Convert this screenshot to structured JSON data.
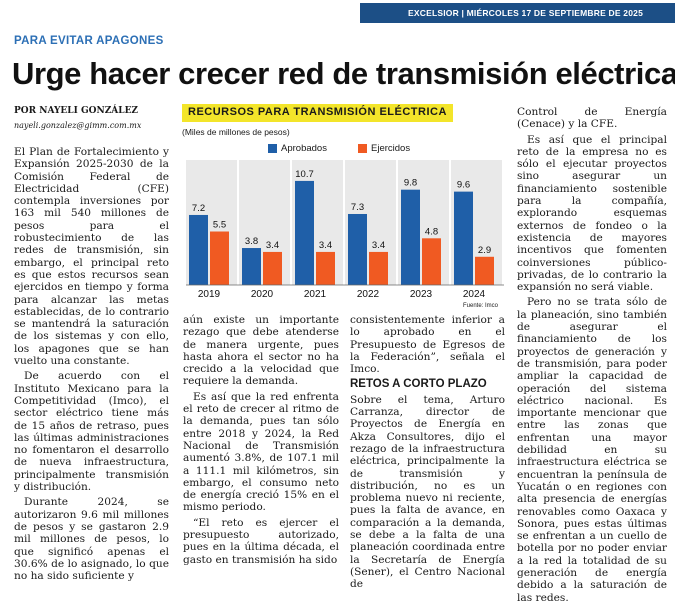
{
  "header": {
    "text": "EXCELSIOR | MIÉRCOLES 17 DE SEPTIEMBRE DE 2025"
  },
  "kicker": "PARA EVITAR APAGONES",
  "headline": "Urge hacer crecer red de transmisión eléctrica",
  "byline": "POR NAYELI GONZÁLEZ",
  "email": "nayeli.gonzalez@gimm.com.mx",
  "colors": {
    "aprobados": "#1f5fa8",
    "ejercidos": "#f05a22",
    "highlight": "#f3e52a",
    "header": "#1c4f86"
  },
  "col1": {
    "p1": "El Plan de Fortalecimiento y Expansión 2025-2030 de la Comisión Federal de Electricidad (CFE) contempla inversiones por 163 mil 540 millones de pesos para el robustecimiento de las redes de transmisión, sin embargo, el principal reto es que estos recursos sean ejercidos en tiempo y forma para alcanzar las metas establecidas, de lo contrario se mantendrá la saturación de los sistemas y con ello, los apagones que se han vuelto una constante.",
    "p2": "De acuerdo con el Instituto Mexicano para la Competitividad (Imco), el sector eléctrico tiene más de 15 años de retraso, pues las últimas administraciones no fomentaron el desarrollo de nueva infraestructura, principalmente transmisión y distribución.",
    "p3": "Durante 2024, se autorizaron 9.6 mil millones de pesos y se gastaron 2.9 mil millones de pesos, lo que significó apenas el 30.6% de lo asignado, lo que no ha sido suficiente y"
  },
  "col2": {
    "p1": "aún existe un importante rezago que debe atenderse de manera urgente, pues hasta ahora el sector no ha crecido a la velocidad que requiere la demanda.",
    "p2": "Es así que la red enfrenta el reto de crecer al ritmo de la demanda, pues tan sólo entre 2018 y 2024, la Red Nacional de Transmisión aumentó 3.8%, de 107.1 mil a 111.1 mil kilómetros, sin embargo, el consumo neto de energía creció 15% en el mismo periodo.",
    "p3": "“El reto es ejercer el presupuesto autorizado, pues en la última década, el gasto en transmisión ha sido"
  },
  "col3": {
    "p1": "consistentemente inferior a lo aprobado en el Presupuesto de Egresos de la Federación”, señala el Imco.",
    "subhead": "RETOS A CORTO PLAZO",
    "p2": "Sobre el tema, Arturo Carranza, director de Proyectos de Energía en Akza Consultores, dijo el rezago de la infraestructura eléctrica, principalmente la de transmisión y distribución, no es un problema nuevo ni reciente, pues la falta de avance, en comparación a la demanda, se debe a la falta de una planeación coordinada entre la Secretaría de Energía (Sener), el Centro Nacional de"
  },
  "col4": {
    "p1": "Control de Energía (Cenace) y la CFE.",
    "p2": "Es así que el principal reto de la empresa no es sólo el ejecutar proyectos sino asegurar un financiamiento sostenible para la compañía, explorando esquemas externos de fondeo o la existencia de mayores incentivos que fomenten coinversiones público-privadas, de lo contrario la expansión no será viable.",
    "p3": "Pero no se trata sólo de la planeación, sino también de asegurar el financiamiento de los proyectos de generación y de transmisión, para poder ampliar la capacidad de operación del sistema eléctrico nacional. Es importante mencionar que entre las zonas que enfrentan una mayor debilidad en su infraestructura eléctrica se encuentran la península de Yucatán o en regiones con alta presencia de energías renovables como Oaxaca y Sonora, pues estas últimas se enfrentan a un cuello de botella por no poder enviar a la red la totalidad de su generación de energía debido a la saturación de las redes."
  },
  "chart_data": {
    "type": "bar",
    "title": "RECURSOS PARA TRANSMISIÓN ELÉCTRICA",
    "units": "(Miles de millones de pesos)",
    "categories": [
      "2019",
      "2020",
      "2021",
      "2022",
      "2023",
      "2024"
    ],
    "series": [
      {
        "name": "Aprobados",
        "values": [
          7.2,
          3.8,
          10.7,
          7.3,
          9.8,
          9.6
        ]
      },
      {
        "name": "Ejercidos",
        "values": [
          5.5,
          3.4,
          3.4,
          3.4,
          4.8,
          2.9
        ]
      }
    ],
    "ylim": [
      0,
      11
    ],
    "source": "Fuente: Imco"
  }
}
